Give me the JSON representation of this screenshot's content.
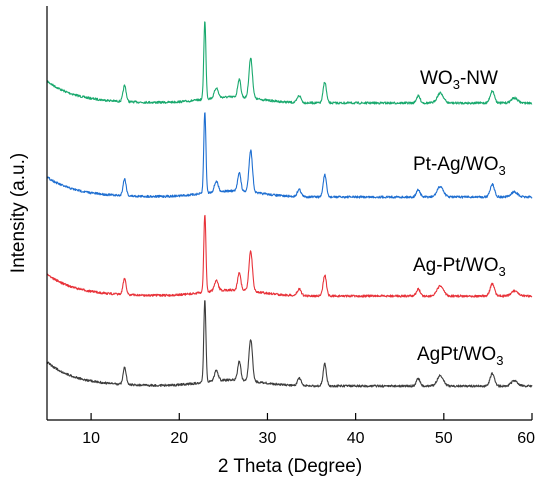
{
  "chart_data": {
    "type": "line",
    "xlabel": "2 Theta  (Degree)",
    "ylabel": "Intensity (a.u.)",
    "xlim": [
      5,
      60
    ],
    "xticks": [
      10,
      20,
      30,
      40,
      50,
      60
    ],
    "y_ticks_shown": false,
    "grid": false,
    "legend": "inline labels to the right of each trace",
    "peaks_2theta": [
      13.8,
      22.9,
      24.2,
      26.8,
      28.1,
      33.6,
      36.5,
      47.1,
      49.6,
      55.5,
      58.0
    ],
    "series": [
      {
        "name": "WO3-NW",
        "label_main": "WO",
        "label_sub": "3",
        "label_tail": "-NW",
        "color": "#1aa96e"
      },
      {
        "name": "Pt-Ag/WO3",
        "label_main": "Pt-Ag/WO",
        "label_sub": "3",
        "label_tail": "",
        "color": "#1f6fd1"
      },
      {
        "name": "Ag-Pt/WO3",
        "label_main": "Ag-Pt/WO",
        "label_sub": "3",
        "label_tail": "",
        "color": "#e8333a"
      },
      {
        "name": "AgPt/WO3",
        "label_main": "AgPt/WO",
        "label_sub": "3",
        "label_tail": "",
        "color": "#3d3d3d"
      }
    ]
  }
}
